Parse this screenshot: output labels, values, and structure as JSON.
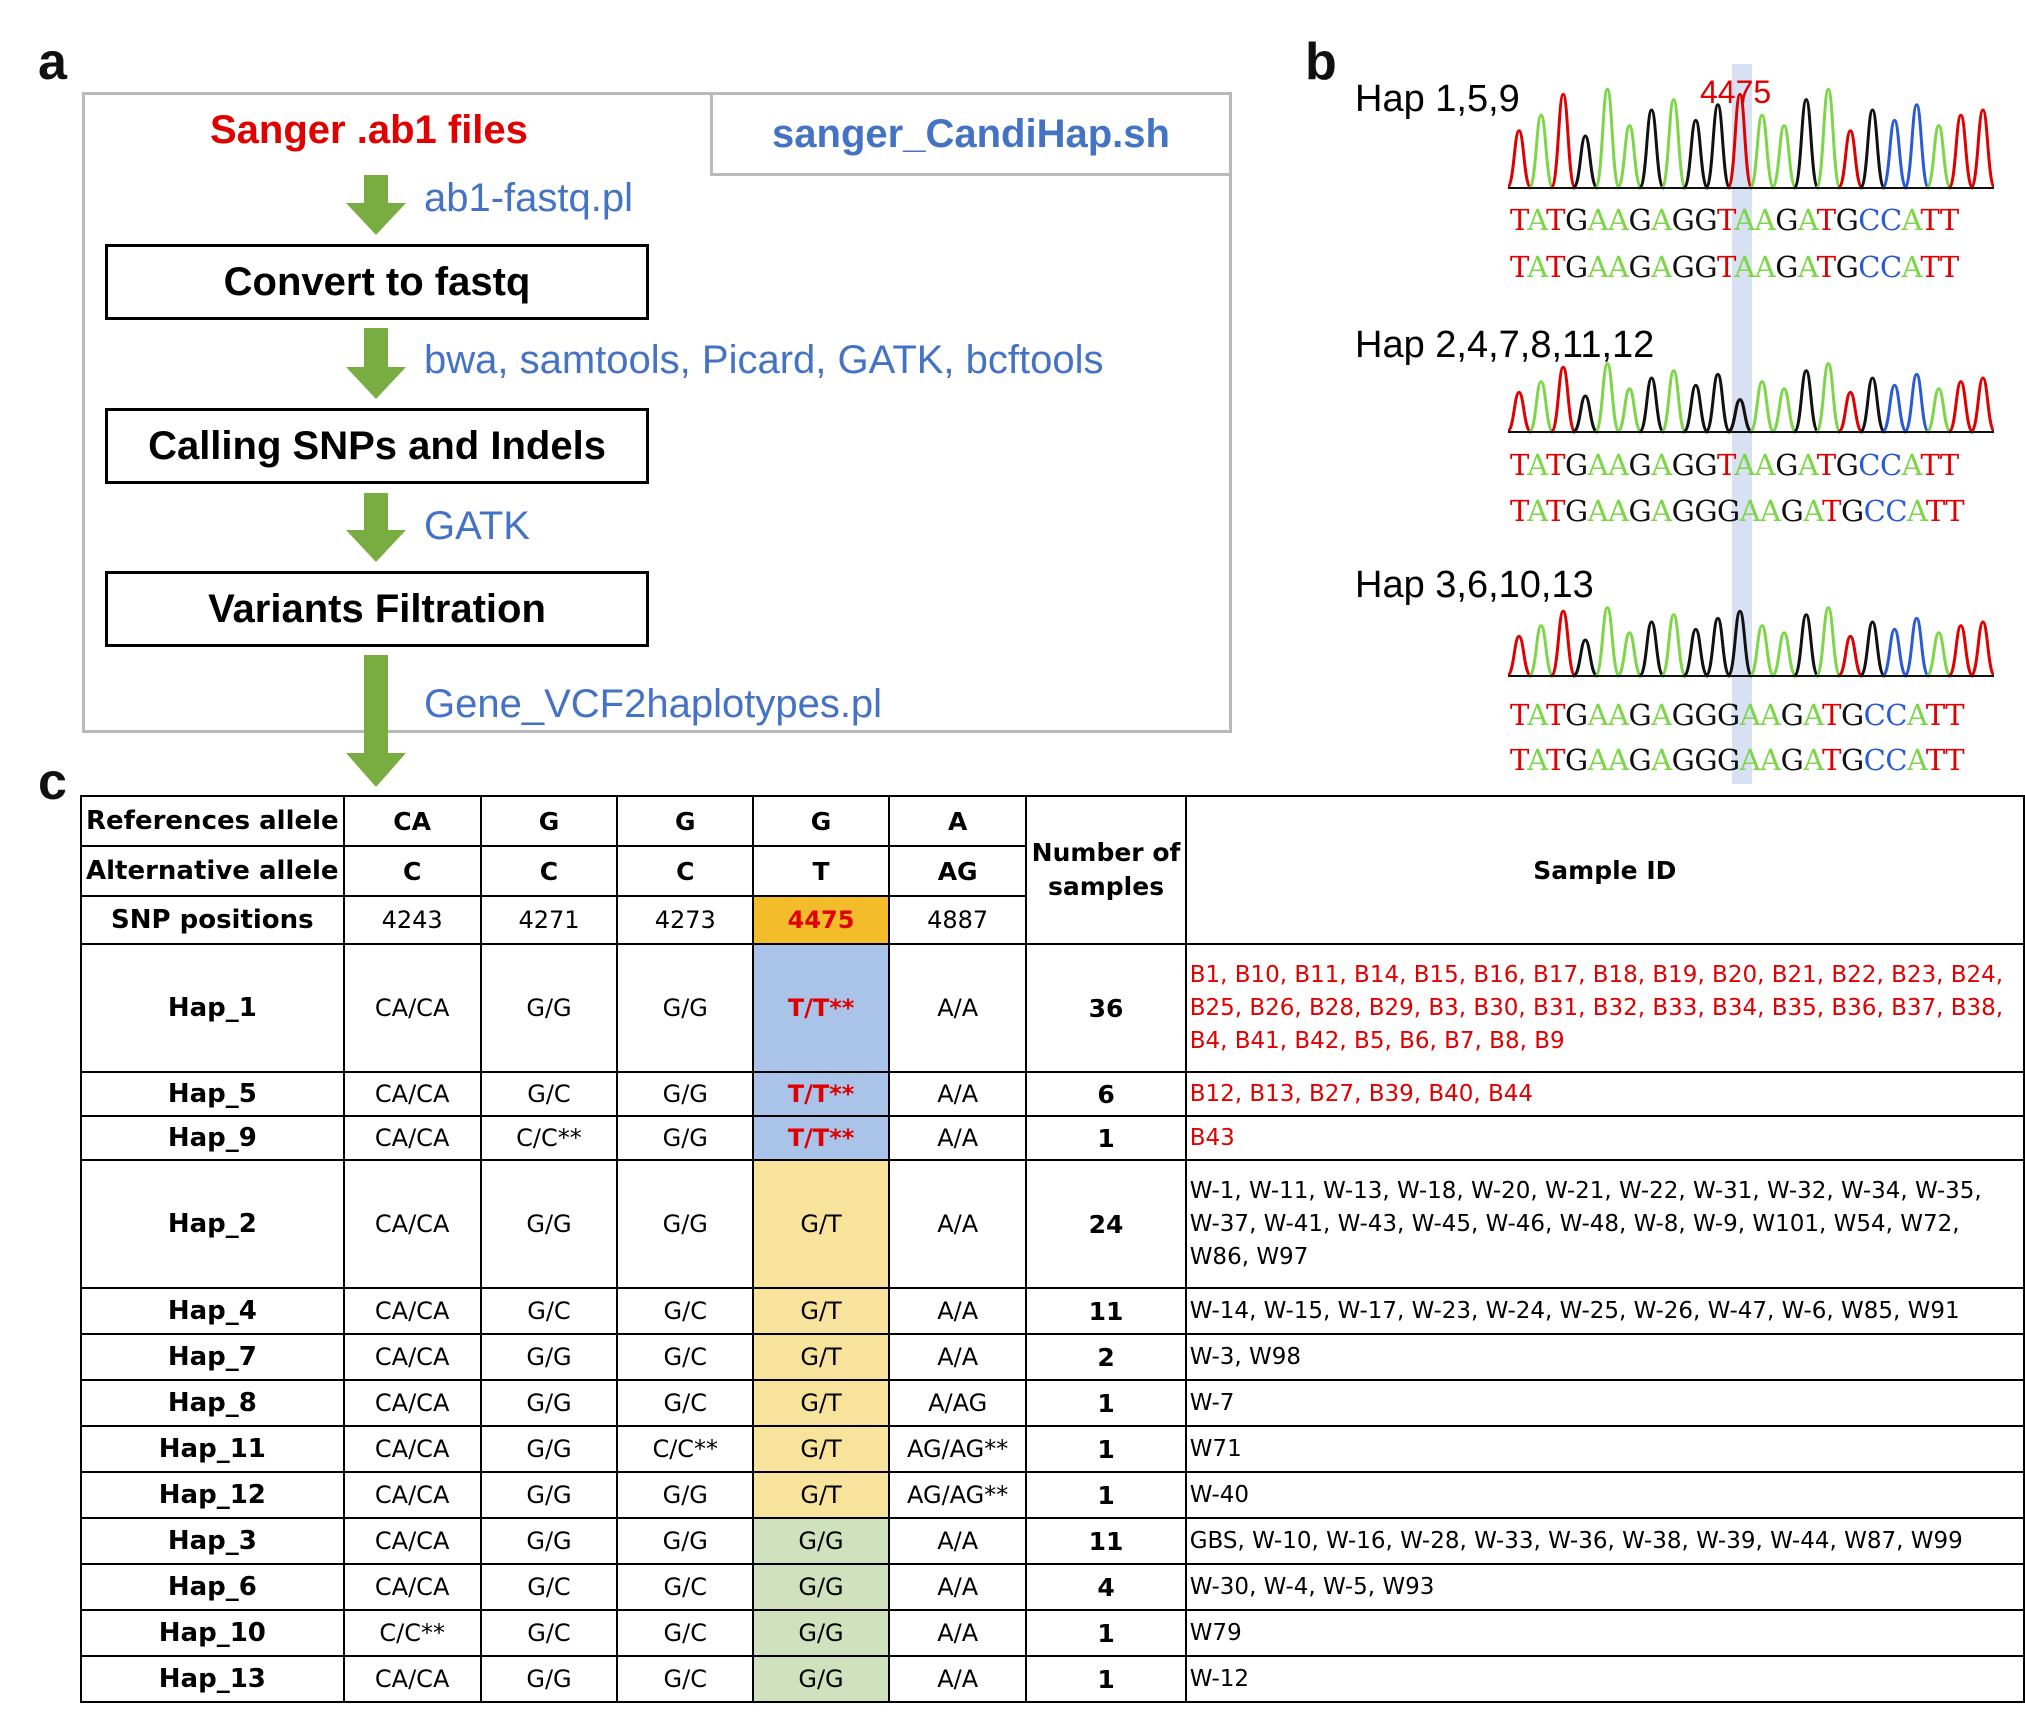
{
  "panel_labels": {
    "a": "a",
    "b": "b",
    "c": "c"
  },
  "panel_a": {
    "input": "Sanger .ab1 files",
    "script": "sanger_CandiHap.sh",
    "tools": [
      "ab1-fastq.pl",
      "bwa, samtools, Picard, GATK, bcftools",
      "GATK",
      "Gene_VCF2haplotypes.pl"
    ],
    "steps": [
      "Convert to fastq",
      "Calling SNPs and Indels",
      "Variants Filtration"
    ],
    "colors": {
      "input": "#e00000",
      "tool": "#4472c4",
      "arrow": "#79ad41"
    }
  },
  "panel_b": {
    "position_label": "4475",
    "groups": [
      {
        "title": "Hap 1,5,9",
        "seq1": "TATGAAGAGGTAAGATGCCATT",
        "seq2": "TATGAAGAGGTAAGATGCCATT"
      },
      {
        "title": "Hap 2,4,7,8,11,12",
        "seq1": "TATGAAGAGGTAAGATGCCATT",
        "seq2": "TATGAAGAGGGAAGATGCCATT"
      },
      {
        "title": "Hap 3,6,10,13",
        "seq1": "TATGAAGAGGGAAGATGCCATT",
        "seq2": "TATGAAGAGGGAAGATGCCATT"
      }
    ]
  },
  "panel_c": {
    "row_labels": {
      "ref": "References allele",
      "alt": "Alternative allele",
      "pos": "SNP positions"
    },
    "num_header": "Number of samples",
    "sid_header": "Sample ID",
    "snps": [
      {
        "ref": "CA",
        "alt": "C",
        "pos": "4243"
      },
      {
        "ref": "G",
        "alt": "C",
        "pos": "4271"
      },
      {
        "ref": "G",
        "alt": "C",
        "pos": "4273"
      },
      {
        "ref": "G",
        "alt": "T",
        "pos": "4475"
      },
      {
        "ref": "A",
        "alt": "AG",
        "pos": "4887"
      }
    ],
    "haplotypes": [
      {
        "name": "Hap_1",
        "g": [
          "CA/CA",
          "G/G",
          "G/G",
          "T/T**",
          "A/A"
        ],
        "n": "36",
        "ids": "B1, B10, B11, B14, B15, B16, B17, B18, B19, B20, B21, B22, B23, B24, B25, B26, B28, B29, B3, B30, B31, B32, B33, B34, B35, B36, B37, B38, B4, B41, B42, B5, B6, B7, B8, B9"
      },
      {
        "name": "Hap_5",
        "g": [
          "CA/CA",
          "G/C",
          "G/G",
          "T/T**",
          "A/A"
        ],
        "n": "6",
        "ids": "B12, B13, B27, B39, B40, B44"
      },
      {
        "name": "Hap_9",
        "g": [
          "CA/CA",
          "C/C**",
          "G/G",
          "T/T**",
          "A/A"
        ],
        "n": "1",
        "ids": "B43"
      },
      {
        "name": "Hap_2",
        "g": [
          "CA/CA",
          "G/G",
          "G/G",
          "G/T",
          "A/A"
        ],
        "n": "24",
        "ids": "W-1, W-11, W-13, W-18, W-20, W-21, W-22, W-31, W-32, W-34, W-35, W-37, W-41, W-43, W-45, W-46, W-48, W-8, W-9, W101, W54, W72, W86, W97"
      },
      {
        "name": "Hap_4",
        "g": [
          "CA/CA",
          "G/C",
          "G/C",
          "G/T",
          "A/A"
        ],
        "n": "11",
        "ids": "W-14, W-15, W-17, W-23, W-24, W-25, W-26, W-47, W-6, W85, W91"
      },
      {
        "name": "Hap_7",
        "g": [
          "CA/CA",
          "G/G",
          "G/C",
          "G/T",
          "A/A"
        ],
        "n": "2",
        "ids": "W-3, W98"
      },
      {
        "name": "Hap_8",
        "g": [
          "CA/CA",
          "G/G",
          "G/C",
          "G/T",
          "A/AG"
        ],
        "n": "1",
        "ids": "W-7"
      },
      {
        "name": "Hap_11",
        "g": [
          "CA/CA",
          "G/G",
          "C/C**",
          "G/T",
          "AG/AG**"
        ],
        "n": "1",
        "ids": "W71"
      },
      {
        "name": "Hap_12",
        "g": [
          "CA/CA",
          "G/G",
          "G/G",
          "G/T",
          "AG/AG**"
        ],
        "n": "1",
        "ids": "W-40"
      },
      {
        "name": "Hap_3",
        "g": [
          "CA/CA",
          "G/G",
          "G/G",
          "G/G",
          "A/A"
        ],
        "n": "11",
        "ids": "GBS, W-10, W-16, W-28, W-33, W-36, W-38, W-39, W-44, W87, W99"
      },
      {
        "name": "Hap_6",
        "g": [
          "CA/CA",
          "G/C",
          "G/C",
          "G/G",
          "A/A"
        ],
        "n": "4",
        "ids": "W-30, W-4, W-5, W93"
      },
      {
        "name": "Hap_10",
        "g": [
          "C/C**",
          "G/C",
          "G/C",
          "G/G",
          "A/A"
        ],
        "n": "1",
        "ids": "W79"
      },
      {
        "name": "Hap_13",
        "g": [
          "CA/CA",
          "G/G",
          "G/C",
          "G/G",
          "A/A"
        ],
        "n": "1",
        "ids": "W-12"
      }
    ],
    "colors": {
      "highlight_T": "#a9c4e8",
      "highlight_GT": "#f8e39d",
      "highlight_GG": "#d0e2bd",
      "highlight_pos": "#f3bc2a",
      "red_text": "#e00000"
    }
  }
}
